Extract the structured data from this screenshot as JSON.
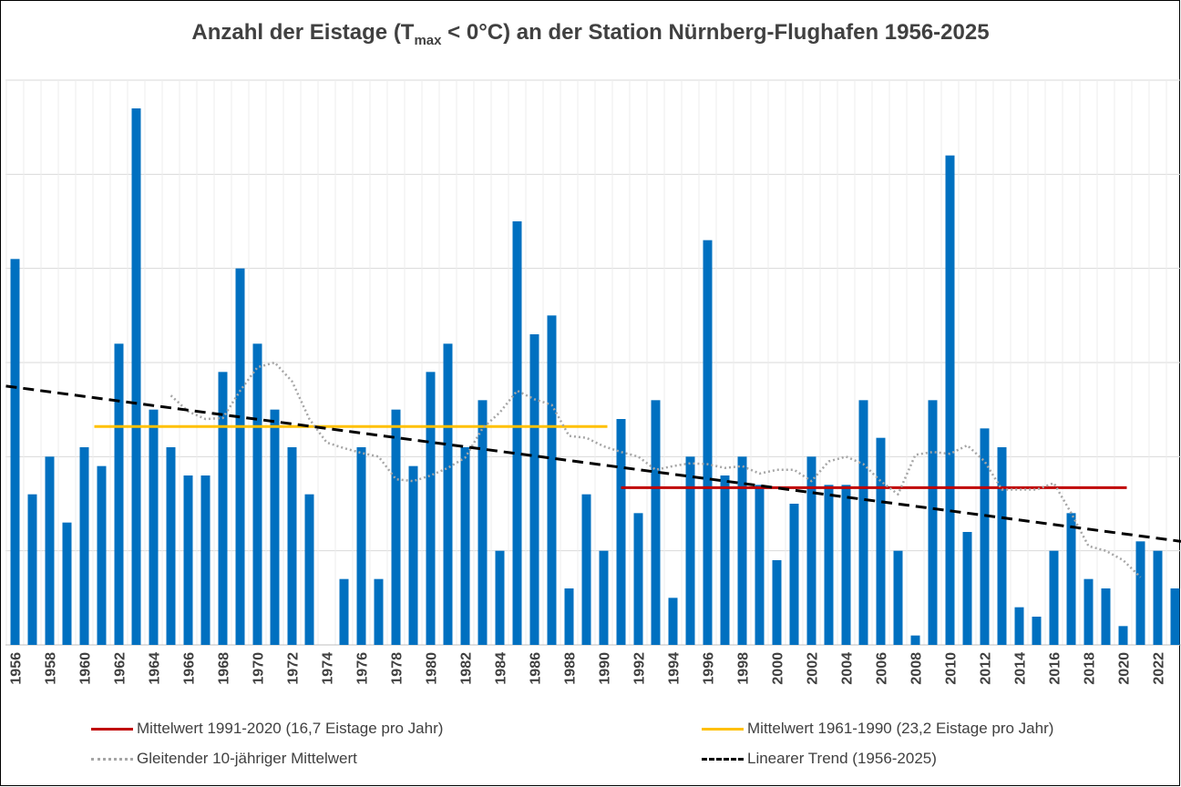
{
  "chart_data": {
    "type": "bar",
    "title_main": "Anzahl der Eistage (T",
    "title_sub": "max",
    "title_rest": " < 0°C) an der Station Nürnberg-Flughafen 1956-2025",
    "xlabel": "",
    "ylabel": "",
    "ylim": [
      0,
      60
    ],
    "grid": true,
    "years": [
      1956,
      1957,
      1958,
      1959,
      1960,
      1961,
      1962,
      1963,
      1964,
      1965,
      1966,
      1967,
      1968,
      1969,
      1970,
      1971,
      1972,
      1973,
      1974,
      1975,
      1976,
      1977,
      1978,
      1979,
      1980,
      1981,
      1982,
      1983,
      1984,
      1985,
      1986,
      1987,
      1988,
      1989,
      1990,
      1991,
      1992,
      1993,
      1994,
      1995,
      1996,
      1997,
      1998,
      1999,
      2000,
      2001,
      2002,
      2003,
      2004,
      2005,
      2006,
      2007,
      2008,
      2009,
      2010,
      2011,
      2012,
      2013,
      2014,
      2015,
      2016,
      2017,
      2018,
      2019,
      2020,
      2021,
      2022,
      2023
    ],
    "tick_labels": [
      "1956",
      "1958",
      "1960",
      "1962",
      "1964",
      "1966",
      "1968",
      "1970",
      "1972",
      "1974",
      "1976",
      "1978",
      "1980",
      "1982",
      "1984",
      "1986",
      "1988",
      "1990",
      "1992",
      "1994",
      "1996",
      "1998",
      "2000",
      "2002",
      "2004",
      "2006",
      "2008",
      "2010",
      "2012",
      "2014",
      "2016",
      "2018",
      "2020",
      "2022"
    ],
    "series": [
      {
        "name": "Eistage",
        "color": "#0070c0",
        "values": [
          41,
          16,
          20,
          13,
          21,
          19,
          32,
          57,
          25,
          21,
          18,
          18,
          29,
          40,
          32,
          25,
          21,
          16,
          0,
          7,
          21,
          7,
          25,
          19,
          29,
          32,
          21,
          26,
          10,
          45,
          33,
          35,
          6,
          16,
          10,
          24,
          14,
          26,
          5,
          20,
          43,
          18,
          20,
          17,
          9,
          15,
          20,
          17,
          17,
          26,
          22,
          10,
          1,
          26,
          52,
          12,
          23,
          21,
          4,
          3,
          10,
          14,
          7,
          6,
          2,
          11,
          10,
          6
        ]
      }
    ],
    "moving_average": {
      "name": "Gleitender 10-jähriger Mittelwert",
      "color": "#a6a6a6",
      "start_year": 1965,
      "values": [
        26.5,
        24.8,
        24.0,
        24.1,
        27.0,
        29.5,
        30.0,
        28.0,
        24.0,
        21.5,
        20.9,
        20.4,
        20.0,
        17.6,
        17.4,
        18.0,
        18.8,
        19.9,
        23.0,
        24.7,
        27.0,
        26.1,
        25.5,
        22.2,
        22.0,
        21.1,
        20.5,
        20.0,
        18.6,
        19.0,
        19.3,
        19.2,
        18.8,
        19.0,
        18.2,
        18.6,
        18.6,
        17.4,
        19.5,
        20.0,
        19.2,
        17.4,
        16.0,
        20.2,
        20.5,
        20.3,
        21.2,
        19.5,
        16.5,
        16.5,
        16.5,
        17.2,
        14.0,
        10.5,
        10.0,
        9.0,
        7.2
      ]
    },
    "mean_1991_2020": {
      "label": "Mittelwert 1991-2020 (16,7 Eistage pro Jahr)",
      "value": 16.7,
      "from": 1991,
      "to": 2020,
      "color": "#c00000"
    },
    "mean_1961_1990": {
      "label": "Mittelwert 1961-1990 (23,2 Eistage pro Jahr)",
      "value": 23.2,
      "from": 1961,
      "to": 1990,
      "color": "#ffc000"
    },
    "trend": {
      "label": "Linearer Trend (1956-2025)",
      "color": "#000000",
      "y_start": 27.5,
      "y_end": 11.0,
      "x_start": 1956,
      "x_end": 2025
    },
    "legend": [
      {
        "key": "mean_1991_2020",
        "text": "Mittelwert 1991-2020 (16,7 Eistage pro Jahr)"
      },
      {
        "key": "mean_1961_1990",
        "text": "Mittelwert 1961-1990 (23,2 Eistage pro Jahr)"
      },
      {
        "key": "moving_average",
        "text": "Gleitender 10-jähriger Mittelwert"
      },
      {
        "key": "trend",
        "text": "Linearer Trend (1956-2025)"
      }
    ],
    "legend_placement": "bottom"
  }
}
